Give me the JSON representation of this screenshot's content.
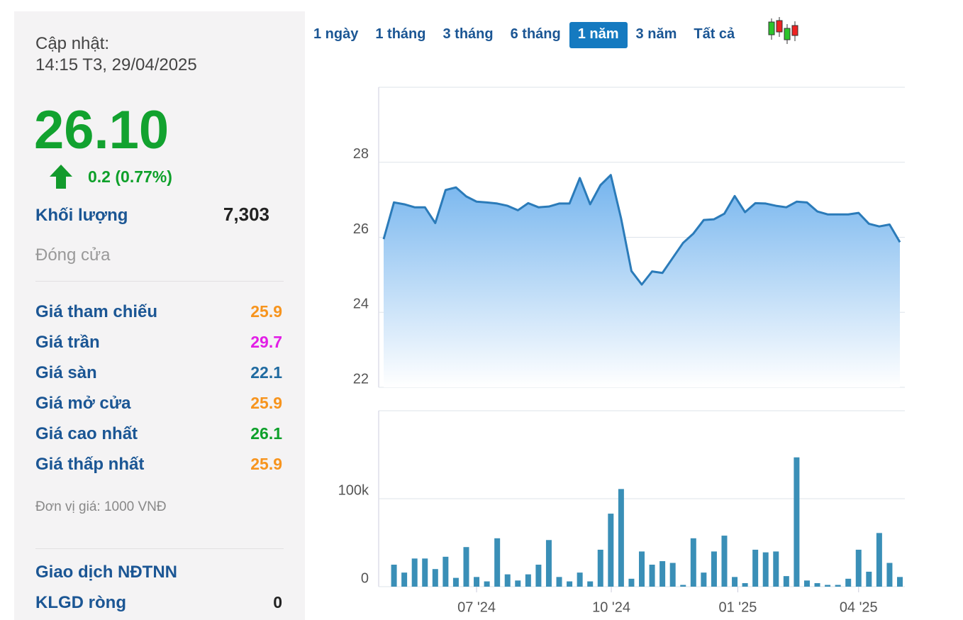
{
  "panel": {
    "update_label": "Cập nhật:",
    "update_time": "14:15 T3, 29/04/2025",
    "price": "26.10",
    "change": "0.2 (0.77%)",
    "volume_label": "Khối lượng",
    "volume": "7,303",
    "status": "Đóng cửa",
    "rows": [
      {
        "label": "Giá tham chiếu",
        "value": "25.9",
        "color": "#f7941d"
      },
      {
        "label": "Giá trần",
        "value": "29.7",
        "color": "#e21ee6"
      },
      {
        "label": "Giá sàn",
        "value": "22.1",
        "color": "#1f6aa0"
      },
      {
        "label": "Giá mở cửa",
        "value": "25.9",
        "color": "#f7941d"
      },
      {
        "label": "Giá cao nhất",
        "value": "26.1",
        "color": "#0ea02a"
      },
      {
        "label": "Giá thấp nhất",
        "value": "25.9",
        "color": "#f7941d"
      }
    ],
    "unit_note": "Đơn vị giá: 1000 VNĐ",
    "foreign_title": "Giao dịch NĐTNN",
    "net_label": "KLGD ròng",
    "net_value": "0"
  },
  "tabs": {
    "items": [
      "1 ngày",
      "1 tháng",
      "3 tháng",
      "6 tháng",
      "1 năm",
      "3 năm",
      "Tất cả"
    ],
    "active": 4
  },
  "chart_data": [
    {
      "type": "area",
      "color": "#2b7bb9",
      "xlim": [
        0,
        50
      ],
      "ylim": [
        22,
        30
      ],
      "yticks": [
        22,
        24,
        26,
        28
      ],
      "grid": true,
      "values": [
        25.95,
        26.93,
        26.88,
        26.8,
        26.8,
        26.38,
        27.26,
        27.33,
        27.09,
        26.95,
        26.93,
        26.9,
        26.84,
        26.72,
        26.91,
        26.8,
        26.82,
        26.9,
        26.9,
        27.58,
        26.88,
        27.39,
        27.66,
        26.5,
        25.1,
        24.74,
        25.09,
        25.05,
        25.45,
        25.85,
        26.1,
        26.46,
        26.48,
        26.63,
        27.1,
        26.67,
        26.91,
        26.9,
        26.84,
        26.8,
        26.95,
        26.93,
        26.69,
        26.61,
        26.61,
        26.61,
        26.65,
        26.36,
        26.29,
        26.34,
        25.87
      ]
    },
    {
      "type": "bar",
      "color": "#3a8fb7",
      "xlim": [
        0,
        50
      ],
      "ylim": [
        0,
        200000
      ],
      "yticks": [
        0,
        {
          "value": 100000,
          "label": "100k"
        }
      ],
      "grid": true,
      "xticks": [
        {
          "value": 9,
          "label": "07 '24"
        },
        {
          "value": 22.05,
          "label": "10 '24"
        },
        {
          "value": 34.3,
          "label": "01 '25"
        },
        {
          "value": 46,
          "label": "04 '25"
        }
      ],
      "values": [
        null,
        25000,
        16000,
        32000,
        32000,
        20000,
        34000,
        10000,
        45000,
        11000,
        6000,
        55000,
        14000,
        7000,
        14000,
        25000,
        53000,
        11000,
        6000,
        16000,
        6000,
        42000,
        83000,
        111000,
        9000,
        40000,
        25000,
        29000,
        27000,
        2000,
        55000,
        16000,
        40000,
        58000,
        11000,
        4000,
        42000,
        39000,
        40000,
        12000,
        147000,
        7000,
        4000,
        2000,
        2000,
        9000,
        42000,
        17000,
        61000,
        27000,
        11000
      ]
    }
  ]
}
